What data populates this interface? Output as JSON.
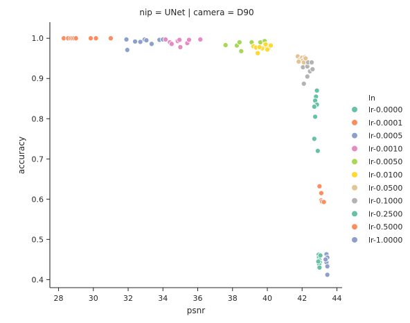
{
  "chart_data": {
    "type": "scatter",
    "title": "nip = UNet | camera = D90",
    "xlabel": "psnr",
    "ylabel": "accuracy",
    "xlim": [
      27.5,
      44.3
    ],
    "ylim": [
      0.38,
      1.04
    ],
    "xticks": [
      28,
      30,
      32,
      34,
      36,
      38,
      40,
      42,
      44
    ],
    "yticks": [
      0.4,
      0.5,
      0.6,
      0.7,
      0.8,
      0.9,
      1.0
    ],
    "grid": false,
    "legend_title": "ln",
    "legend_position": "right",
    "series": [
      {
        "name": "lr-0.0000",
        "color": "#66c2a5",
        "points": [
          [
            42.85,
            0.87
          ],
          [
            42.8,
            0.855
          ],
          [
            42.75,
            0.845
          ],
          [
            42.85,
            0.835
          ],
          [
            42.7,
            0.83
          ],
          [
            42.75,
            0.805
          ],
          [
            42.7,
            0.75
          ],
          [
            42.9,
            0.72
          ]
        ]
      },
      {
        "name": "lr-0.0001",
        "color": "#fc8d62",
        "points": [
          [
            28.3,
            1.0
          ],
          [
            28.55,
            1.0
          ],
          [
            28.7,
            1.0
          ],
          [
            28.8,
            1.0
          ],
          [
            28.9,
            1.0
          ],
          [
            29.0,
            1.0
          ],
          [
            29.85,
            1.0
          ],
          [
            30.15,
            1.0
          ],
          [
            31.0,
            1.0
          ]
        ]
      },
      {
        "name": "lr-0.0005",
        "color": "#8da0cb",
        "points": [
          [
            31.9,
            0.997
          ],
          [
            31.95,
            0.971
          ],
          [
            32.4,
            0.992
          ],
          [
            32.7,
            0.991
          ],
          [
            32.95,
            0.997
          ],
          [
            33.05,
            0.995
          ],
          [
            33.35,
            0.986
          ],
          [
            33.8,
            0.996
          ],
          [
            34.0,
            0.997
          ]
        ]
      },
      {
        "name": "lr-0.0010",
        "color": "#e78ac3",
        "points": [
          [
            34.15,
            0.997
          ],
          [
            34.4,
            0.99
          ],
          [
            34.5,
            0.986
          ],
          [
            34.85,
            0.993
          ],
          [
            34.95,
            0.996
          ],
          [
            35.0,
            0.978
          ],
          [
            35.4,
            0.988
          ],
          [
            35.5,
            0.996
          ],
          [
            36.15,
            0.997
          ]
        ]
      },
      {
        "name": "lr-0.0050",
        "color": "#a6d854",
        "points": [
          [
            37.6,
            0.983
          ],
          [
            38.25,
            0.982
          ],
          [
            38.4,
            0.99
          ],
          [
            38.5,
            0.968
          ],
          [
            39.1,
            0.99
          ],
          [
            39.2,
            0.98
          ],
          [
            39.6,
            0.99
          ],
          [
            39.85,
            0.993
          ],
          [
            40.1,
            0.978
          ]
        ]
      },
      {
        "name": "lr-0.0100",
        "color": "#ffd92f",
        "points": [
          [
            39.2,
            0.98
          ],
          [
            39.35,
            0.977
          ],
          [
            39.45,
            0.963
          ],
          [
            39.7,
            0.975
          ],
          [
            39.95,
            0.98
          ],
          [
            40.0,
            0.972
          ],
          [
            40.2,
            0.982
          ],
          [
            39.9,
            0.985
          ],
          [
            39.55,
            0.978
          ]
        ]
      },
      {
        "name": "lr-0.0500",
        "color": "#e5c494",
        "points": [
          [
            41.75,
            0.955
          ],
          [
            41.9,
            0.948
          ],
          [
            42.0,
            0.952
          ],
          [
            42.05,
            0.945
          ],
          [
            42.15,
            0.953
          ],
          [
            42.1,
            0.94
          ],
          [
            41.8,
            0.942
          ],
          [
            42.2,
            0.95
          ]
        ]
      },
      {
        "name": "lr-0.1000",
        "color": "#b3b3b3",
        "points": [
          [
            42.05,
            0.928
          ],
          [
            42.3,
            0.93
          ],
          [
            42.35,
            0.94
          ],
          [
            42.45,
            0.918
          ],
          [
            42.55,
            0.94
          ],
          [
            42.6,
            0.923
          ],
          [
            42.1,
            0.887
          ],
          [
            42.3,
            0.905
          ]
        ]
      },
      {
        "name": "lr-0.2500",
        "color": "#66c2a5",
        "points": [
          [
            42.95,
            0.462
          ],
          [
            42.97,
            0.455
          ],
          [
            43.0,
            0.448
          ],
          [
            43.02,
            0.443
          ],
          [
            42.98,
            0.438
          ],
          [
            43.0,
            0.43
          ],
          [
            43.05,
            0.46
          ],
          [
            42.93,
            0.445
          ]
        ]
      },
      {
        "name": "lr-0.5000",
        "color": "#fc8d62",
        "points": [
          [
            43.0,
            0.632
          ],
          [
            43.1,
            0.615
          ],
          [
            43.1,
            0.597
          ],
          [
            43.2,
            0.592
          ],
          [
            43.15,
            0.594
          ],
          [
            43.25,
            0.593
          ]
        ]
      },
      {
        "name": "lr-1.0000",
        "color": "#8da0cb",
        "points": [
          [
            43.4,
            0.463
          ],
          [
            43.45,
            0.455
          ],
          [
            43.4,
            0.443
          ],
          [
            43.45,
            0.433
          ],
          [
            43.35,
            0.45
          ],
          [
            43.45,
            0.412
          ]
        ]
      }
    ]
  }
}
